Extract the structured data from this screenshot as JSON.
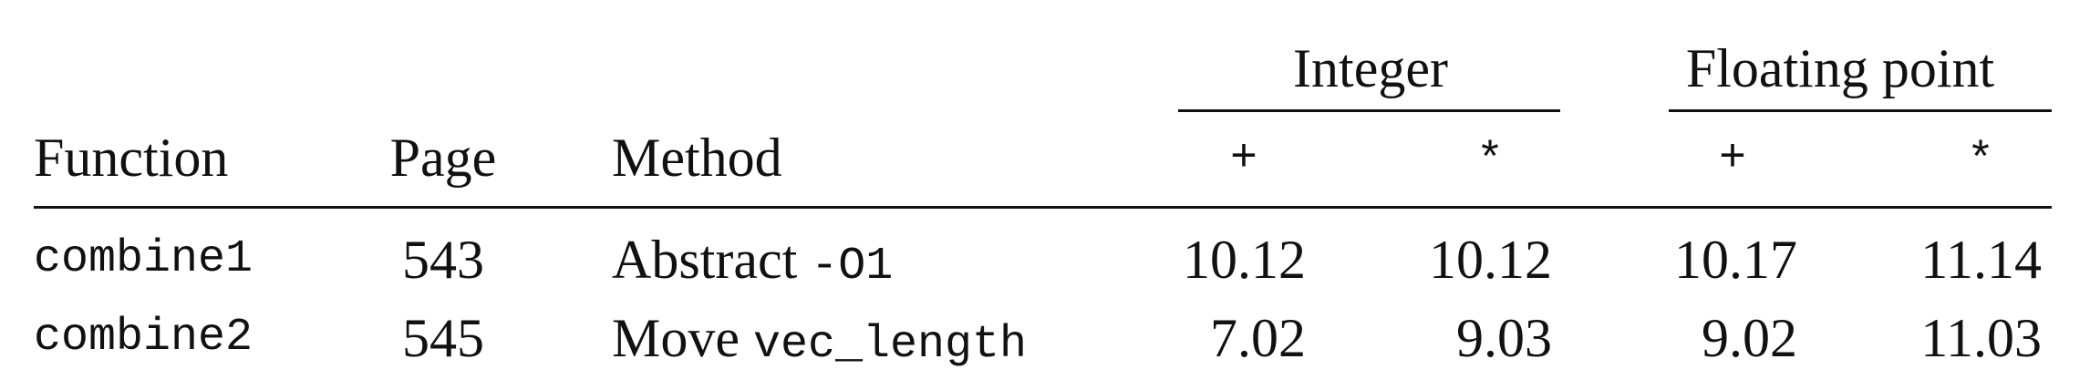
{
  "table": {
    "group_headers": {
      "integer": "Integer",
      "floating_point": "Floating point"
    },
    "columns": {
      "function": "Function",
      "page": "Page",
      "method": "Method",
      "int_add": "+",
      "int_mul": "*",
      "fp_add": "+",
      "fp_mul": "*"
    },
    "rows": [
      {
        "function": "combine1",
        "page": "543",
        "method_text": "Abstract ",
        "method_code": "-O1",
        "int_add": "10.12",
        "int_mul": "10.12",
        "fp_add": "10.17",
        "fp_mul": "11.14"
      },
      {
        "function": "combine2",
        "page": "545",
        "method_text": "Move ",
        "method_code": "vec_length",
        "int_add": "7.02",
        "int_mul": "9.03",
        "fp_add": "9.02",
        "fp_mul": "11.03"
      }
    ]
  }
}
